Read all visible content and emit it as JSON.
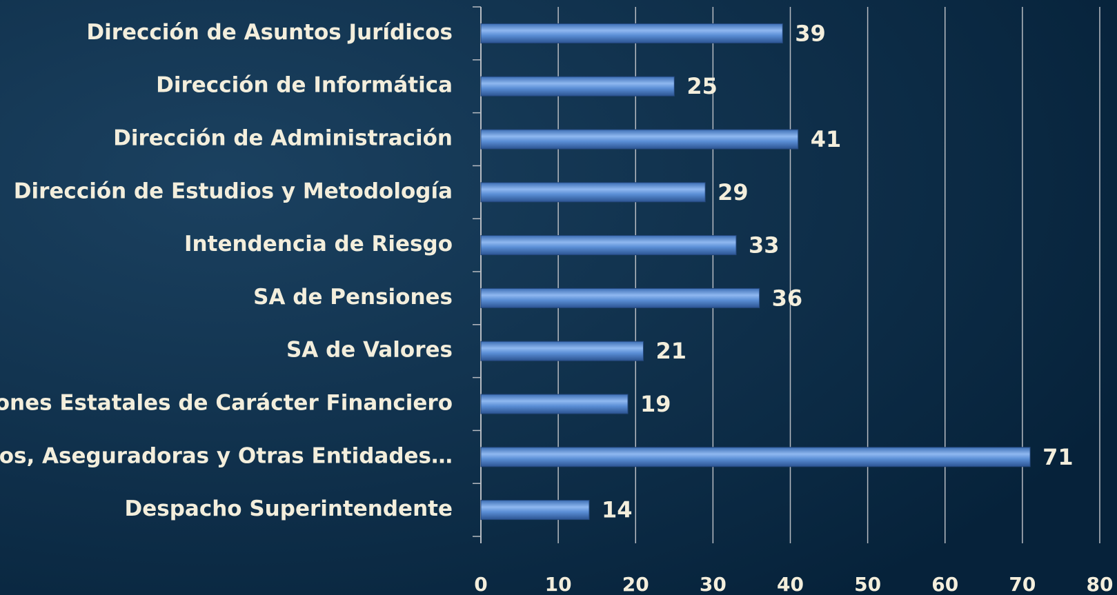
{
  "chart_data": {
    "type": "bar",
    "orientation": "horizontal",
    "categories": [
      "Dirección de Asuntos Jurídicos",
      "Dirección de Informática",
      "Dirección de Administración",
      "Dirección de Estudios y Metodología",
      "Intendencia de Riesgo",
      "SA de Pensiones",
      "SA de Valores",
      "ones Estatales de Carácter Financiero",
      "ncos, Aseguradoras y Otras Entidades…",
      "Despacho Superintendente"
    ],
    "values": [
      39,
      25,
      41,
      29,
      33,
      36,
      21,
      19,
      71,
      14
    ],
    "color": "#5b8fd6",
    "xlim": [
      0,
      80
    ],
    "xticks": [
      0,
      10,
      20,
      30,
      40,
      50,
      60,
      70,
      80
    ],
    "grid": true
  }
}
